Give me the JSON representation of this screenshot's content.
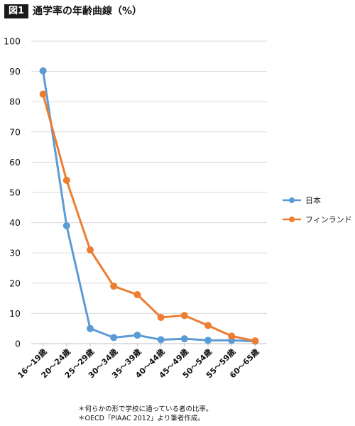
{
  "figure": {
    "badge": "図1",
    "title": "通学率の年齢曲線（%）"
  },
  "notes": [
    "＊何らかの形で学校に通っている者の比率。",
    "＊OECD「PIAAC 2012」より筆者作成。"
  ],
  "colors": {
    "japan": "#5b9bd5",
    "finland": "#ed7d31",
    "grid": "#d9d9d9",
    "axis": "#bfbfbf"
  },
  "chart_data": {
    "type": "line",
    "categories": [
      "16～19歳",
      "20～24歳",
      "25～29歳",
      "30～34歳",
      "35～39歳",
      "40～44歳",
      "45～49歳",
      "50～54歳",
      "55～59歳",
      "60～65歳"
    ],
    "series": [
      {
        "name": "日本",
        "values": [
          90.2,
          39,
          5,
          2,
          2.8,
          1.3,
          1.6,
          1.1,
          1.1,
          0.8
        ]
      },
      {
        "name": "フィンランド",
        "values": [
          82.5,
          54,
          31,
          19,
          16.2,
          8.7,
          9.3,
          6,
          2.5,
          0.9
        ]
      }
    ],
    "ylim": [
      0,
      100
    ],
    "yticks": [
      0,
      10,
      20,
      30,
      40,
      50,
      60,
      70,
      80,
      90,
      100
    ],
    "grid": true,
    "legend_position": "right",
    "title": "",
    "xlabel": "",
    "ylabel": ""
  }
}
